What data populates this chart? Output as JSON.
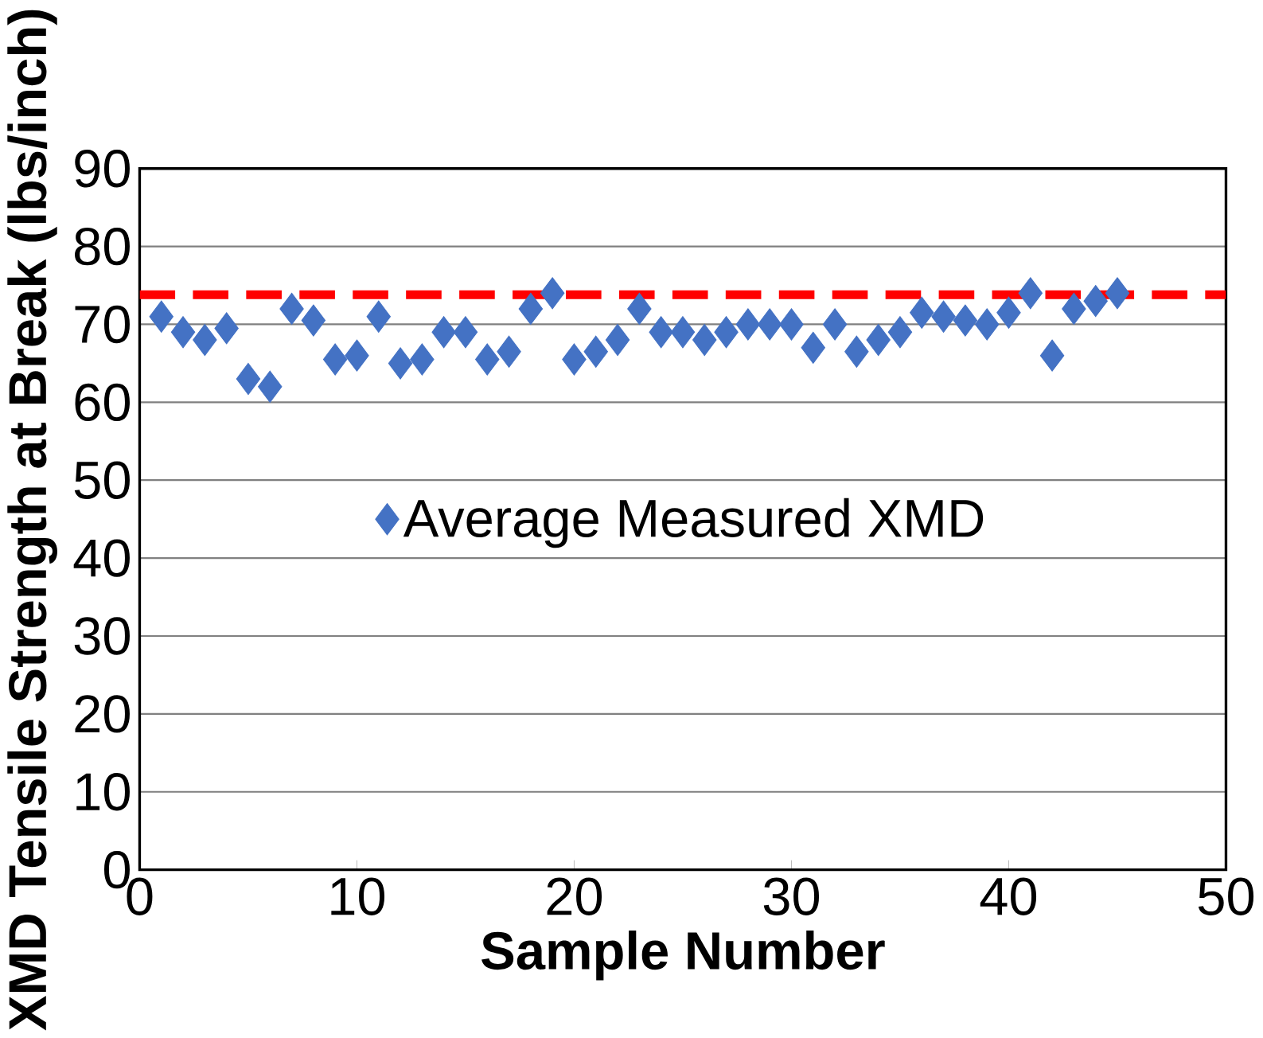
{
  "chart_data": {
    "type": "scatter",
    "xlabel": "Sample Number",
    "ylabel": "XMD Tensile Strength at Break (lbs/inch)",
    "x": [
      1,
      2,
      3,
      4,
      5,
      6,
      7,
      8,
      9,
      10,
      11,
      12,
      13,
      14,
      15,
      16,
      17,
      18,
      19,
      20,
      21,
      22,
      23,
      24,
      25,
      26,
      27,
      28,
      29,
      30,
      31,
      32,
      33,
      34,
      35,
      36,
      37,
      38,
      39,
      40,
      41,
      42,
      43,
      44,
      45
    ],
    "series": [
      {
        "name": "Average Measured XMD",
        "color": "#4472c4",
        "values": [
          71,
          69,
          68,
          69.5,
          63,
          62,
          72,
          70.5,
          65.5,
          66,
          71,
          65,
          65.5,
          69,
          69,
          65.5,
          66.5,
          72,
          74,
          65.5,
          66.5,
          68,
          72,
          69,
          69,
          68,
          69,
          70,
          70,
          70,
          67,
          70,
          66.5,
          68,
          69,
          71.5,
          71,
          70.5,
          70,
          71.5,
          74,
          66,
          72,
          73,
          74
        ]
      }
    ],
    "marker": "diamond",
    "xlim": [
      0,
      50
    ],
    "ylim": [
      0,
      90
    ],
    "xticks": [
      0,
      10,
      20,
      30,
      40,
      50
    ],
    "yticks": [
      0,
      10,
      20,
      30,
      40,
      50,
      60,
      70,
      80,
      90
    ],
    "grid": "y",
    "legend": "center",
    "ref_lines": [
      {
        "axis": "y",
        "value": 73.8,
        "color": "#ff0000",
        "line_style": "dashed"
      }
    ]
  }
}
